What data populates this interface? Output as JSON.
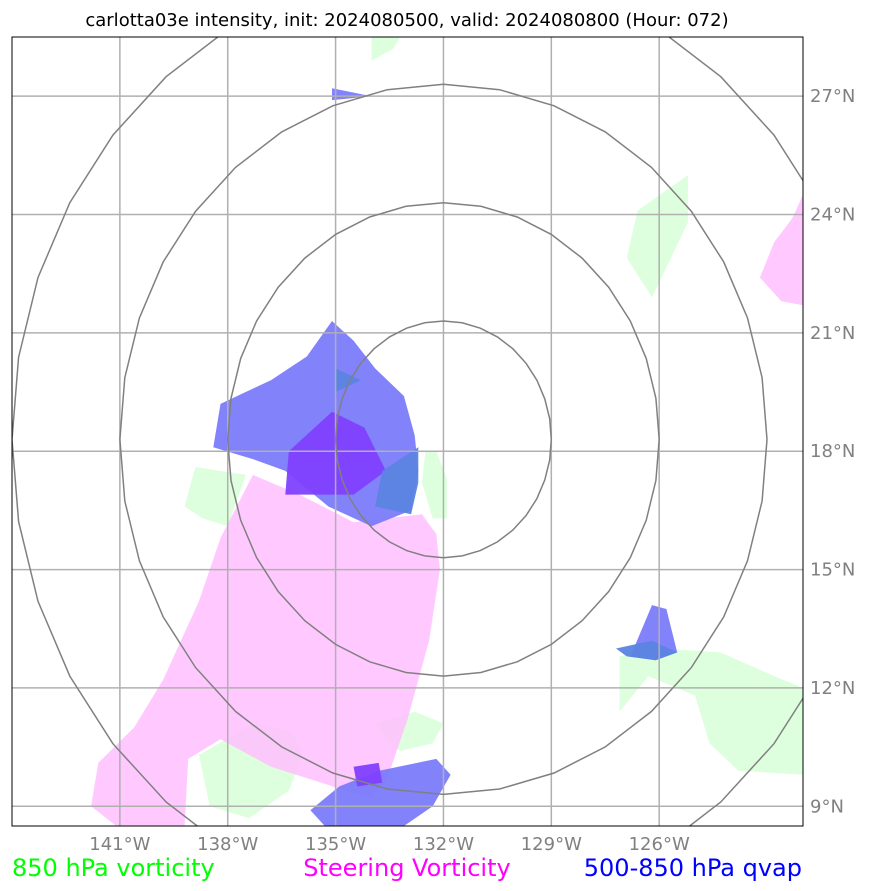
{
  "chart_data": {
    "type": "map",
    "title": "carlotta03e intensity, init: 2024080500, valid: 2024080800 (Hour: 072)",
    "lon_range": [
      -144,
      -122
    ],
    "lat_range": [
      8.5,
      28.5
    ],
    "x_ticks": [
      {
        "value": -141,
        "label": "141°W"
      },
      {
        "value": -138,
        "label": "138°W"
      },
      {
        "value": -135,
        "label": "135°W"
      },
      {
        "value": -132,
        "label": "132°W"
      },
      {
        "value": -129,
        "label": "129°W"
      },
      {
        "value": -126,
        "label": "126°W"
      }
    ],
    "y_ticks": [
      {
        "value": 9,
        "label": "9°N"
      },
      {
        "value": 12,
        "label": "12°N"
      },
      {
        "value": 15,
        "label": "15°N"
      },
      {
        "value": 18,
        "label": "18°N"
      },
      {
        "value": 21,
        "label": "21°N"
      },
      {
        "value": 24,
        "label": "24°N"
      },
      {
        "value": 27,
        "label": "27°N"
      }
    ],
    "range_rings_center": [
      -132,
      18.3
    ],
    "range_rings_radius_deg": [
      3,
      6,
      9,
      12
    ],
    "grid": true,
    "colors": {
      "vorticity_850": "#ddffdd",
      "steering_vorticity": "#ffbfff",
      "qvap": "#7b7bfb",
      "overlap_purple": "#8040ff",
      "overlap_blue": "#5b84e0",
      "grid": "#b0b0b0",
      "rings": "#808080"
    },
    "fields": {
      "vorticity_850": [
        [
          [
            -134,
            28.5
          ],
          [
            -133.2,
            28.5
          ],
          [
            -133.4,
            28.2
          ],
          [
            -134,
            27.9
          ]
        ],
        [
          [
            -126.6,
            24.1
          ],
          [
            -125.2,
            25
          ],
          [
            -125.2,
            23.8
          ],
          [
            -126.2,
            21.9
          ],
          [
            -126.9,
            22.9
          ]
        ],
        [
          [
            -132.2,
            18
          ],
          [
            -132.5,
            18
          ],
          [
            -132.6,
            17.2
          ],
          [
            -132.3,
            16.3
          ],
          [
            -131.9,
            16.3
          ],
          [
            -131.9,
            17.3
          ]
        ],
        [
          [
            -138.7,
            16.3
          ],
          [
            -139.2,
            16.6
          ],
          [
            -138.9,
            17.6
          ],
          [
            -137.5,
            17.4
          ],
          [
            -138,
            16.1
          ]
        ],
        [
          [
            -127.1,
            12.8
          ],
          [
            -126,
            13
          ],
          [
            -124.3,
            12.9
          ],
          [
            -122.8,
            12.3
          ],
          [
            -122,
            12.0
          ],
          [
            -122,
            9.8
          ],
          [
            -123.8,
            9.9
          ],
          [
            -124.6,
            10.6
          ],
          [
            -125,
            11.8
          ],
          [
            -126.3,
            12.3
          ],
          [
            -127.1,
            11.4
          ]
        ],
        [
          [
            -138.8,
            10.3
          ],
          [
            -137.3,
            11.1
          ],
          [
            -136.2,
            10.9
          ],
          [
            -135.9,
            10.3
          ],
          [
            -136.3,
            9.4
          ],
          [
            -137.4,
            8.7
          ],
          [
            -138.5,
            9.0
          ]
        ],
        [
          [
            -133.9,
            11.1
          ],
          [
            -132.8,
            11.4
          ],
          [
            -132,
            11.1
          ],
          [
            -132.3,
            10.6
          ],
          [
            -133.2,
            10.4
          ],
          [
            -133.5,
            10.6
          ]
        ]
      ],
      "steering_vorticity": [
        [
          [
            -122,
            24.5
          ],
          [
            -122.3,
            23.9
          ],
          [
            -122.8,
            23.3
          ],
          [
            -123.2,
            22.4
          ],
          [
            -122.6,
            21.8
          ],
          [
            -122,
            21.7
          ]
        ],
        [
          [
            -137.3,
            17.4
          ],
          [
            -136,
            16.9
          ],
          [
            -134.5,
            16.2
          ],
          [
            -132.6,
            16.4
          ],
          [
            -132.2,
            15.9
          ],
          [
            -132.1,
            15
          ],
          [
            -132.4,
            13.2
          ],
          [
            -133,
            11.2
          ],
          [
            -133.6,
            9.6
          ],
          [
            -134.1,
            9.2
          ],
          [
            -135.4,
            9.6
          ],
          [
            -136.8,
            10
          ],
          [
            -138.2,
            10.7
          ],
          [
            -139.1,
            10.2
          ],
          [
            -139.2,
            8.5
          ],
          [
            -141.1,
            8.5
          ],
          [
            -141.8,
            9
          ],
          [
            -141.6,
            10.1
          ],
          [
            -140.6,
            11
          ],
          [
            -139.8,
            12.2
          ],
          [
            -138.8,
            14.2
          ],
          [
            -138.2,
            15.8
          ]
        ]
      ],
      "qvap": [
        [
          [
            -135.1,
            27.2
          ],
          [
            -134,
            27
          ],
          [
            -135.1,
            26.9
          ]
        ],
        [
          [
            -135.1,
            21.3
          ],
          [
            -134.5,
            20.8
          ],
          [
            -133.9,
            20.1
          ],
          [
            -133.1,
            19.4
          ],
          [
            -132.8,
            18.4
          ],
          [
            -132.7,
            17.5
          ],
          [
            -132.9,
            16.5
          ],
          [
            -134,
            16.1
          ],
          [
            -135.2,
            16.6
          ],
          [
            -136.4,
            17.5
          ],
          [
            -137.3,
            17.8
          ],
          [
            -138.4,
            18.1
          ],
          [
            -138.2,
            19.2
          ],
          [
            -136.8,
            19.8
          ],
          [
            -135.8,
            20.4
          ]
        ],
        [
          [
            -126.8,
            12.8
          ],
          [
            -126.2,
            14.1
          ],
          [
            -125.8,
            14
          ],
          [
            -125.5,
            12.9
          ],
          [
            -126.1,
            12.7
          ]
        ],
        [
          [
            -134.9,
            9.5
          ],
          [
            -133.8,
            9.9
          ],
          [
            -132.2,
            10.2
          ],
          [
            -131.8,
            9.8
          ],
          [
            -132.3,
            9.0
          ],
          [
            -133.1,
            8.5
          ],
          [
            -135.3,
            8.5
          ],
          [
            -135.7,
            8.9
          ]
        ]
      ],
      "overlap_purple": [
        [
          [
            -136.3,
            18
          ],
          [
            -135.1,
            19.0
          ],
          [
            -134.2,
            18.6
          ],
          [
            -133.6,
            17.5
          ],
          [
            -134.5,
            16.9
          ],
          [
            -136.4,
            16.9
          ]
        ],
        [
          [
            -134.5,
            10.0
          ],
          [
            -133.8,
            10.1
          ],
          [
            -133.7,
            9.6
          ],
          [
            -134.4,
            9.5
          ]
        ]
      ],
      "overlap_blue": [
        [
          [
            -135,
            20.1
          ],
          [
            -134.3,
            19.8
          ],
          [
            -135,
            19.5
          ]
        ],
        [
          [
            -133.7,
            17.5
          ],
          [
            -132.7,
            18.1
          ],
          [
            -132.7,
            17.2
          ],
          [
            -132.9,
            16.4
          ],
          [
            -133.9,
            16.6
          ]
        ],
        [
          [
            -127.2,
            13
          ],
          [
            -126.2,
            13.2
          ],
          [
            -125.5,
            12.9
          ],
          [
            -126.1,
            12.7
          ],
          [
            -126.9,
            12.8
          ]
        ]
      ]
    },
    "legend": [
      {
        "label": "850 hPa vorticity",
        "color": "#00ff00"
      },
      {
        "label": "Steering Vorticity",
        "color": "#ff00ff"
      },
      {
        "label": "500-850 hPa qvap",
        "color": "#0000ff"
      }
    ]
  }
}
